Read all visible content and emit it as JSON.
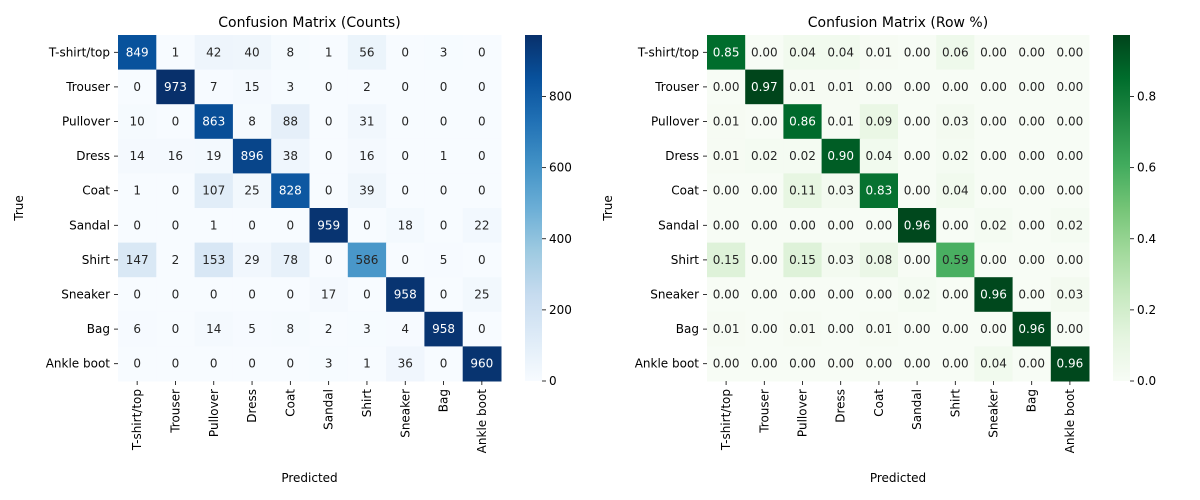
{
  "chart_data": [
    {
      "type": "heatmap",
      "title": "Confusion Matrix (Counts)",
      "xlabel": "Predicted",
      "ylabel": "True",
      "x_categories": [
        "T-shirt/top",
        "Trouser",
        "Pullover",
        "Dress",
        "Coat",
        "Sandal",
        "Shirt",
        "Sneaker",
        "Bag",
        "Ankle boot"
      ],
      "y_categories": [
        "T-shirt/top",
        "Trouser",
        "Pullover",
        "Dress",
        "Coat",
        "Sandal",
        "Shirt",
        "Sneaker",
        "Bag",
        "Ankle boot"
      ],
      "values": [
        [
          849,
          1,
          42,
          40,
          8,
          1,
          56,
          0,
          3,
          0
        ],
        [
          0,
          973,
          7,
          15,
          3,
          0,
          2,
          0,
          0,
          0
        ],
        [
          10,
          0,
          863,
          8,
          88,
          0,
          31,
          0,
          0,
          0
        ],
        [
          14,
          16,
          19,
          896,
          38,
          0,
          16,
          0,
          1,
          0
        ],
        [
          1,
          0,
          107,
          25,
          828,
          0,
          39,
          0,
          0,
          0
        ],
        [
          0,
          0,
          1,
          0,
          0,
          959,
          0,
          18,
          0,
          22
        ],
        [
          147,
          2,
          153,
          29,
          78,
          0,
          586,
          0,
          5,
          0
        ],
        [
          0,
          0,
          0,
          0,
          0,
          17,
          0,
          958,
          0,
          25
        ],
        [
          6,
          0,
          14,
          5,
          8,
          2,
          3,
          4,
          958,
          0
        ],
        [
          0,
          0,
          0,
          0,
          0,
          3,
          1,
          36,
          0,
          960
        ]
      ],
      "value_format": "integer",
      "colormap": "Blues",
      "colormap_stops": [
        "#f7fbff",
        "#deebf7",
        "#c6dbef",
        "#9ecae1",
        "#6baed6",
        "#4292c6",
        "#2171b5",
        "#08519c",
        "#08306b"
      ],
      "vmin": 0,
      "vmax": 973,
      "colorbar_ticks": [
        0,
        200,
        400,
        600,
        800
      ],
      "colorbar_tick_labels": [
        "0",
        "200",
        "400",
        "600",
        "800"
      ]
    },
    {
      "type": "heatmap",
      "title": "Confusion Matrix (Row %)",
      "xlabel": "Predicted",
      "ylabel": "True",
      "x_categories": [
        "T-shirt/top",
        "Trouser",
        "Pullover",
        "Dress",
        "Coat",
        "Sandal",
        "Shirt",
        "Sneaker",
        "Bag",
        "Ankle boot"
      ],
      "y_categories": [
        "T-shirt/top",
        "Trouser",
        "Pullover",
        "Dress",
        "Coat",
        "Sandal",
        "Shirt",
        "Sneaker",
        "Bag",
        "Ankle boot"
      ],
      "values": [
        [
          0.85,
          0.0,
          0.04,
          0.04,
          0.01,
          0.0,
          0.06,
          0.0,
          0.0,
          0.0
        ],
        [
          0.0,
          0.97,
          0.01,
          0.01,
          0.0,
          0.0,
          0.0,
          0.0,
          0.0,
          0.0
        ],
        [
          0.01,
          0.0,
          0.86,
          0.01,
          0.09,
          0.0,
          0.03,
          0.0,
          0.0,
          0.0
        ],
        [
          0.01,
          0.02,
          0.02,
          0.9,
          0.04,
          0.0,
          0.02,
          0.0,
          0.0,
          0.0
        ],
        [
          0.0,
          0.0,
          0.11,
          0.03,
          0.83,
          0.0,
          0.04,
          0.0,
          0.0,
          0.0
        ],
        [
          0.0,
          0.0,
          0.0,
          0.0,
          0.0,
          0.96,
          0.0,
          0.02,
          0.0,
          0.02
        ],
        [
          0.15,
          0.0,
          0.15,
          0.03,
          0.08,
          0.0,
          0.59,
          0.0,
          0.0,
          0.0
        ],
        [
          0.0,
          0.0,
          0.0,
          0.0,
          0.0,
          0.02,
          0.0,
          0.96,
          0.0,
          0.03
        ],
        [
          0.01,
          0.0,
          0.01,
          0.0,
          0.01,
          0.0,
          0.0,
          0.0,
          0.96,
          0.0
        ],
        [
          0.0,
          0.0,
          0.0,
          0.0,
          0.0,
          0.0,
          0.0,
          0.04,
          0.0,
          0.96
        ]
      ],
      "value_format": "2-decimal",
      "colormap": "Greens",
      "colormap_stops": [
        "#f7fcf5",
        "#e5f5e0",
        "#c7e9c0",
        "#a1d99b",
        "#74c476",
        "#41ab5d",
        "#238b45",
        "#006d2c",
        "#00441b"
      ],
      "vmin": 0,
      "vmax": 0.973,
      "colorbar_ticks": [
        0.0,
        0.2,
        0.4,
        0.6,
        0.8
      ],
      "colorbar_tick_labels": [
        "0.0",
        "0.2",
        "0.4",
        "0.6",
        "0.8"
      ]
    }
  ]
}
